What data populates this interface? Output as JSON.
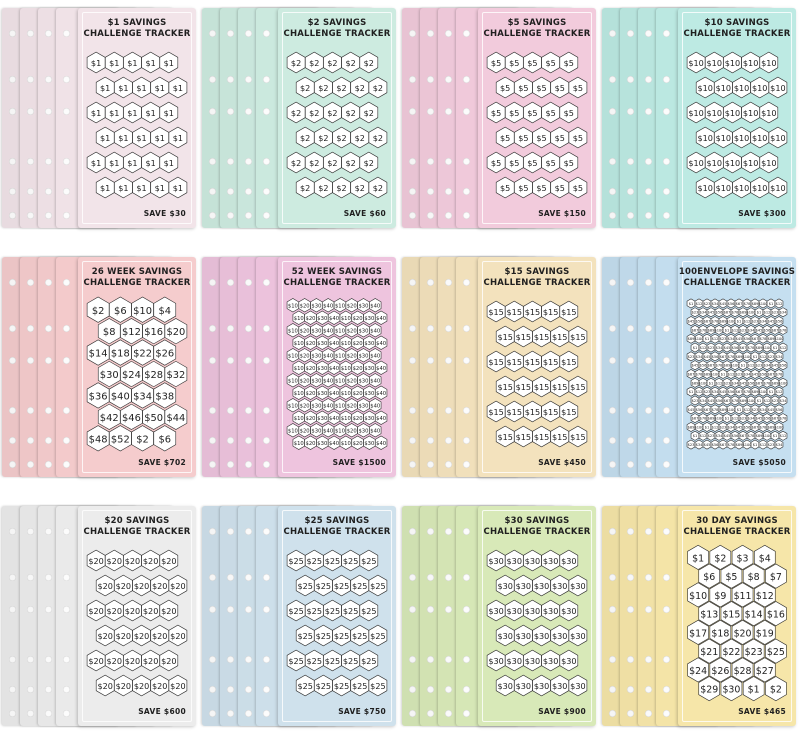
{
  "trackers": [
    {
      "title_lines": [
        "$1 SAVINGS",
        "CHALLENGE TRACKER"
      ],
      "save": "SAVE $30",
      "color": "#f2e4e9",
      "dim": [
        5,
        6
      ],
      "values": [
        "$1"
      ]
    },
    {
      "title_lines": [
        "$2 SAVINGS",
        "CHALLENGE TRACKER"
      ],
      "save": "SAVE $60",
      "color": "#cdebe0",
      "dim": [
        5,
        6
      ],
      "values": [
        "$2"
      ]
    },
    {
      "title_lines": [
        "$5 SAVINGS",
        "CHALLENGE TRACKER"
      ],
      "save": "SAVE $150",
      "color": "#f2cbdc",
      "dim": [
        5,
        6
      ],
      "values": [
        "$5"
      ]
    },
    {
      "title_lines": [
        "$10 SAVINGS",
        "CHALLENGE TRACKER"
      ],
      "save": "SAVE $300",
      "color": "#bdeae3",
      "dim": [
        5,
        6
      ],
      "values": [
        "$10"
      ]
    },
    {
      "title_lines": [
        "26 WEEK SAVINGS",
        "CHALLENGE TRACKER"
      ],
      "save": "SAVE $702",
      "color": "#f5cccd",
      "dim": [
        4,
        7
      ],
      "values": [
        "$2",
        "$6",
        "$10",
        "$4",
        "$8",
        "$12",
        "$16",
        "$20",
        "$14",
        "$18",
        "$22",
        "$26",
        "$30",
        "$24",
        "$28",
        "$32",
        "$36",
        "$40",
        "$34",
        "$38",
        "$42",
        "$46",
        "$50",
        "$44",
        "$48",
        "$52"
      ]
    },
    {
      "title_lines": [
        "52 WEEK SAVINGS",
        "CHALLENGE TRACKER"
      ],
      "save": "SAVE $1500",
      "color": "#eec4de",
      "dim": [
        8,
        12
      ],
      "values": [
        "$10",
        "$20",
        "$30",
        "$40"
      ]
    },
    {
      "title_lines": [
        "$15 SAVINGS",
        "CHALLENGE TRACKER"
      ],
      "save": "SAVE $450",
      "color": "#f3e2bd",
      "dim": [
        5,
        6
      ],
      "values": [
        "$15"
      ]
    },
    {
      "title_lines": [
        "100ENVELOPE SAVINGS",
        "CHALLENGE TRACKER"
      ],
      "save": "SAVE $5050",
      "color": "#c5dff0",
      "dim": [
        12,
        17
      ],
      "values": [
        "$1",
        "$12",
        "$23",
        "$34",
        "$45",
        "$56",
        "$67",
        "$78",
        "$89",
        "$100"
      ]
    },
    {
      "title_lines": [
        "$20 SAVINGS",
        "CHALLENGE TRACKER"
      ],
      "save": "SAVE $600",
      "color": "#ececec",
      "dim": [
        5,
        6
      ],
      "values": [
        "$20"
      ]
    },
    {
      "title_lines": [
        "$25 SAVINGS",
        "CHALLENGE TRACKER"
      ],
      "save": "SAVE $750",
      "color": "#cfe1ec",
      "dim": [
        5,
        6
      ],
      "values": [
        "$25"
      ]
    },
    {
      "title_lines": [
        "$30 SAVINGS",
        "CHALLENGE TRACKER"
      ],
      "save": "SAVE $900",
      "color": "#d8e9b8",
      "dim": [
        5,
        6
      ],
      "values": [
        "$30"
      ]
    },
    {
      "title_lines": [
        "30 DAY SAVINGS",
        "CHALLENGE TRACKER"
      ],
      "save": "SAVE $465",
      "color": "#f6e6a9",
      "dim": [
        4,
        8
      ],
      "values": [
        "$1",
        "$2",
        "$3",
        "$4",
        "$6",
        "$5",
        "$8",
        "$7",
        "$10",
        "$9",
        "$11",
        "$12",
        "$13",
        "$15",
        "$14",
        "$16",
        "$17",
        "$18",
        "$20",
        "$19",
        "$21",
        "$22",
        "$23",
        "$25",
        "$24",
        "$26",
        "$28",
        "$27",
        "$29",
        "$30"
      ]
    }
  ]
}
